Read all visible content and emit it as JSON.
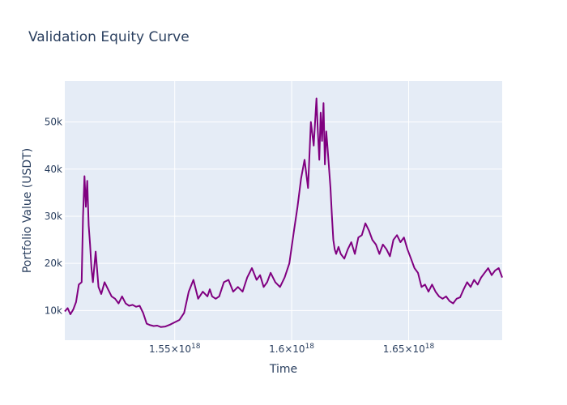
{
  "chart_data": {
    "type": "line",
    "title": "Validation Equity Curve",
    "xlabel": "Time",
    "ylabel": "Portfolio Value (USDT)",
    "xlim": [
      1.503e+18,
      1.69e+18
    ],
    "ylim": [
      3700,
      58700
    ],
    "x_ticks": [
      {
        "value": 1.55e+18,
        "label": "1.55×10",
        "exp": "18"
      },
      {
        "value": 1.6e+18,
        "label": "1.6×10",
        "exp": "18"
      },
      {
        "value": 1.65e+18,
        "label": "1.65×10",
        "exp": "18"
      }
    ],
    "y_ticks": [
      {
        "value": 10000,
        "label": "10k"
      },
      {
        "value": 20000,
        "label": "20k"
      },
      {
        "value": 30000,
        "label": "30k"
      },
      {
        "value": 40000,
        "label": "40k"
      },
      {
        "value": 50000,
        "label": "50k"
      }
    ],
    "grid": true,
    "legend": "none",
    "colors": {
      "line": "#800080",
      "plot_bg": "#e5ecf6",
      "grid": "#ffffff",
      "text": "#2a3f5f"
    },
    "series": [
      {
        "x": [
          1.503e+18,
          1.5042e+18,
          1.5054e+18,
          1.5066e+18,
          1.5078e+18,
          1.509e+18,
          1.5102e+18,
          1.5108e+18,
          1.5114e+18,
          1.512e+18,
          1.5126e+18,
          1.5132e+18,
          1.5138e+18,
          1.5144e+18,
          1.515e+18,
          1.5162e+18,
          1.5174e+18,
          1.5186e+18,
          1.52e+18,
          1.5215e+18,
          1.523e+18,
          1.5245e+18,
          1.526e+18,
          1.5275e+18,
          1.529e+18,
          1.5305e+18,
          1.532e+18,
          1.5335e+18,
          1.535e+18,
          1.5365e+18,
          1.538e+18,
          1.5395e+18,
          1.541e+18,
          1.5425e+18,
          1.544e+18,
          1.546e+18,
          1.548e+18,
          1.55e+18,
          1.552e+18,
          1.554e+18,
          1.556e+18,
          1.558e+18,
          1.56e+18,
          1.562e+18,
          1.564e+18,
          1.565e+18,
          1.566e+18,
          1.5675e+18,
          1.569e+18,
          1.571e+18,
          1.573e+18,
          1.575e+18,
          1.577e+18,
          1.579e+18,
          1.581e+18,
          1.583e+18,
          1.585e+18,
          1.5865e+18,
          1.588e+18,
          1.5895e+18,
          1.591e+18,
          1.593e+18,
          1.595e+18,
          1.597e+18,
          1.599e+18,
          1.601e+18,
          1.6025e+18,
          1.604e+18,
          1.6055e+18,
          1.607e+18,
          1.6082e+18,
          1.6094e+18,
          1.6106e+18,
          1.6112e+18,
          1.6118e+18,
          1.6124e+18,
          1.613e+18,
          1.6136e+18,
          1.6142e+18,
          1.6148e+18,
          1.6154e+18,
          1.616e+18,
          1.6166e+18,
          1.6172e+18,
          1.6178e+18,
          1.6184e+18,
          1.619e+18,
          1.62e+18,
          1.621e+18,
          1.6225e+18,
          1.624e+18,
          1.6255e+18,
          1.627e+18,
          1.6285e+18,
          1.63e+18,
          1.6315e+18,
          1.633e+18,
          1.6345e+18,
          1.636e+18,
          1.6375e+18,
          1.639e+18,
          1.6405e+18,
          1.642e+18,
          1.6435e+18,
          1.645e+18,
          1.6465e+18,
          1.648e+18,
          1.6495e+18,
          1.651e+18,
          1.6525e+18,
          1.654e+18,
          1.6555e+18,
          1.657e+18,
          1.6585e+18,
          1.66e+18,
          1.6615e+18,
          1.663e+18,
          1.6645e+18,
          1.666e+18,
          1.6675e+18,
          1.669e+18,
          1.6705e+18,
          1.672e+18,
          1.6735e+18,
          1.675e+18,
          1.6765e+18,
          1.678e+18,
          1.6795e+18,
          1.681e+18,
          1.6825e+18,
          1.684e+18,
          1.6855e+18,
          1.687e+18,
          1.6885e+18,
          1.69e+18
        ],
        "y": [
          9800,
          10500,
          9200,
          10200,
          11800,
          15500,
          16000,
          30000,
          38500,
          32000,
          37500,
          28000,
          24000,
          19000,
          16000,
          22500,
          15000,
          13500,
          16000,
          14500,
          13000,
          12500,
          11500,
          13000,
          11500,
          11000,
          11200,
          10800,
          11000,
          9500,
          7200,
          6900,
          6700,
          6800,
          6500,
          6600,
          7000,
          7500,
          8000,
          9500,
          14000,
          16500,
          12500,
          14000,
          13000,
          14500,
          13000,
          12500,
          13000,
          16000,
          16500,
          14000,
          15000,
          14000,
          17000,
          19000,
          16500,
          17500,
          15000,
          16000,
          18000,
          16000,
          15000,
          17000,
          20000,
          27000,
          32000,
          38000,
          42000,
          36000,
          50000,
          45000,
          55000,
          48000,
          42000,
          52000,
          46000,
          54000,
          41000,
          48000,
          44000,
          40000,
          36000,
          30000,
          25000,
          23000,
          22000,
          23500,
          22000,
          21000,
          23000,
          24500,
          22000,
          25500,
          26000,
          28500,
          27000,
          25000,
          24000,
          22000,
          24000,
          23000,
          21500,
          25000,
          26000,
          24500,
          25500,
          23000,
          21000,
          19000,
          18000,
          15000,
          15500,
          14000,
          15500,
          14000,
          13000,
          12500,
          13000,
          12000,
          11500,
          12500,
          12800,
          14500,
          16000,
          15000,
          16500,
          15500,
          17000,
          18000,
          19000,
          17500,
          18500,
          19000,
          17000
        ]
      }
    ]
  }
}
